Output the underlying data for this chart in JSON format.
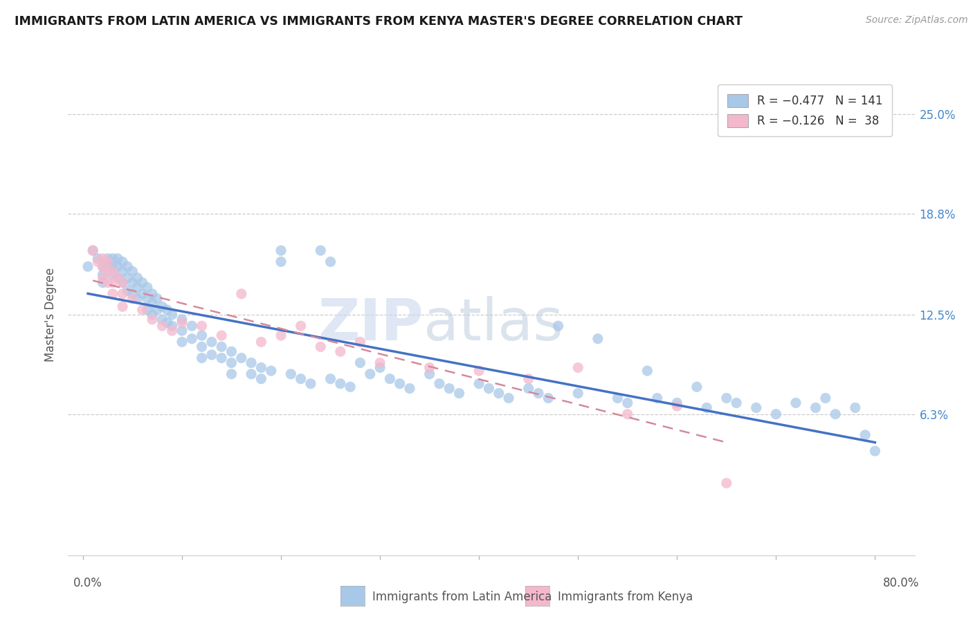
{
  "title": "IMMIGRANTS FROM LATIN AMERICA VS IMMIGRANTS FROM KENYA MASTER'S DEGREE CORRELATION CHART",
  "source": "Source: ZipAtlas.com",
  "ylabel": "Master's Degree",
  "ytick_labels": [
    "6.3%",
    "12.5%",
    "18.8%",
    "25.0%"
  ],
  "ytick_values": [
    0.063,
    0.125,
    0.188,
    0.25
  ],
  "xtick_values": [
    0.0,
    0.1,
    0.2,
    0.3,
    0.4,
    0.5,
    0.6,
    0.7,
    0.8
  ],
  "xlim": [
    -0.015,
    0.84
  ],
  "ylim": [
    -0.025,
    0.275
  ],
  "color_blue": "#a8c8e8",
  "color_pink": "#f4b8cc",
  "color_blue_line": "#4472c4",
  "color_pink_line": "#d4899a",
  "watermark_zip": "ZIP",
  "watermark_atlas": "atlas",
  "legend_label1": "Immigrants from Latin America",
  "legend_label2": "Immigrants from Kenya",
  "blue_x": [
    0.005,
    0.01,
    0.015,
    0.02,
    0.02,
    0.02,
    0.025,
    0.025,
    0.03,
    0.03,
    0.03,
    0.035,
    0.035,
    0.035,
    0.04,
    0.04,
    0.04,
    0.045,
    0.045,
    0.045,
    0.05,
    0.05,
    0.05,
    0.055,
    0.055,
    0.055,
    0.06,
    0.06,
    0.065,
    0.065,
    0.065,
    0.07,
    0.07,
    0.07,
    0.075,
    0.075,
    0.08,
    0.08,
    0.085,
    0.085,
    0.09,
    0.09,
    0.1,
    0.1,
    0.1,
    0.11,
    0.11,
    0.12,
    0.12,
    0.12,
    0.13,
    0.13,
    0.14,
    0.14,
    0.15,
    0.15,
    0.15,
    0.16,
    0.17,
    0.17,
    0.18,
    0.18,
    0.19,
    0.2,
    0.2,
    0.21,
    0.22,
    0.23,
    0.24,
    0.25,
    0.25,
    0.26,
    0.27,
    0.28,
    0.29,
    0.3,
    0.31,
    0.32,
    0.33,
    0.35,
    0.36,
    0.37,
    0.38,
    0.4,
    0.41,
    0.42,
    0.43,
    0.45,
    0.46,
    0.47,
    0.48,
    0.5,
    0.52,
    0.54,
    0.55,
    0.57,
    0.58,
    0.6,
    0.62,
    0.63,
    0.65,
    0.66,
    0.68,
    0.7,
    0.72,
    0.74,
    0.75,
    0.76,
    0.78,
    0.79,
    0.8
  ],
  "blue_y": [
    0.155,
    0.165,
    0.16,
    0.155,
    0.15,
    0.145,
    0.16,
    0.155,
    0.16,
    0.155,
    0.15,
    0.16,
    0.155,
    0.148,
    0.158,
    0.152,
    0.145,
    0.155,
    0.148,
    0.14,
    0.152,
    0.145,
    0.138,
    0.148,
    0.142,
    0.135,
    0.145,
    0.138,
    0.142,
    0.135,
    0.128,
    0.138,
    0.132,
    0.125,
    0.135,
    0.128,
    0.13,
    0.122,
    0.128,
    0.12,
    0.125,
    0.118,
    0.122,
    0.115,
    0.108,
    0.118,
    0.11,
    0.112,
    0.105,
    0.098,
    0.108,
    0.1,
    0.105,
    0.098,
    0.102,
    0.095,
    0.088,
    0.098,
    0.095,
    0.088,
    0.092,
    0.085,
    0.09,
    0.165,
    0.158,
    0.088,
    0.085,
    0.082,
    0.165,
    0.158,
    0.085,
    0.082,
    0.08,
    0.095,
    0.088,
    0.092,
    0.085,
    0.082,
    0.079,
    0.088,
    0.082,
    0.079,
    0.076,
    0.082,
    0.079,
    0.076,
    0.073,
    0.079,
    0.076,
    0.073,
    0.118,
    0.076,
    0.11,
    0.073,
    0.07,
    0.09,
    0.073,
    0.07,
    0.08,
    0.067,
    0.073,
    0.07,
    0.067,
    0.063,
    0.07,
    0.067,
    0.073,
    0.063,
    0.067,
    0.05,
    0.04
  ],
  "pink_x": [
    0.01,
    0.015,
    0.02,
    0.02,
    0.02,
    0.025,
    0.025,
    0.025,
    0.03,
    0.03,
    0.03,
    0.035,
    0.04,
    0.04,
    0.04,
    0.05,
    0.06,
    0.07,
    0.08,
    0.09,
    0.1,
    0.12,
    0.14,
    0.16,
    0.18,
    0.2,
    0.22,
    0.24,
    0.26,
    0.28,
    0.3,
    0.35,
    0.4,
    0.45,
    0.5,
    0.55,
    0.6,
    0.65
  ],
  "pink_y": [
    0.165,
    0.158,
    0.16,
    0.155,
    0.148,
    0.158,
    0.152,
    0.145,
    0.152,
    0.145,
    0.138,
    0.148,
    0.145,
    0.138,
    0.13,
    0.135,
    0.128,
    0.122,
    0.118,
    0.115,
    0.12,
    0.118,
    0.112,
    0.138,
    0.108,
    0.112,
    0.118,
    0.105,
    0.102,
    0.108,
    0.095,
    0.092,
    0.09,
    0.085,
    0.092,
    0.063,
    0.068,
    0.02
  ]
}
